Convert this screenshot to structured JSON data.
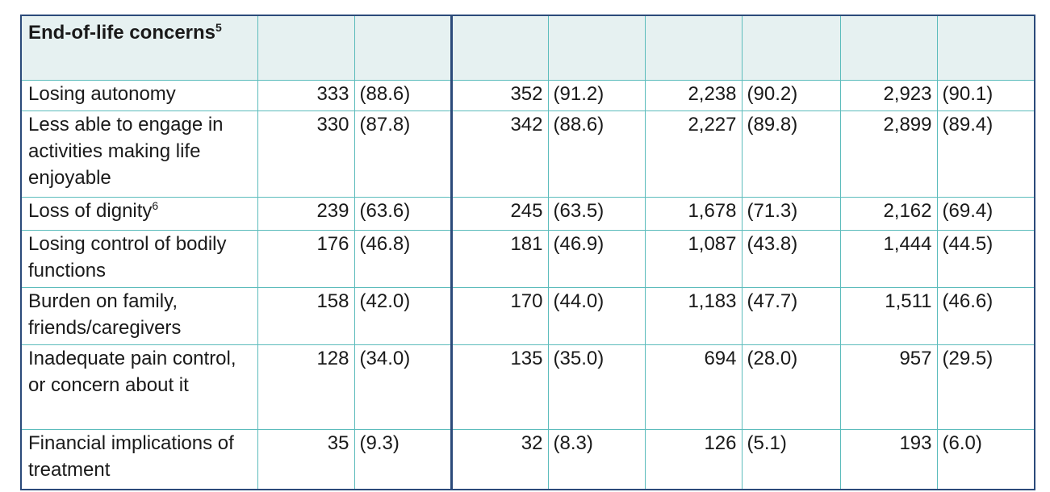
{
  "table": {
    "header": {
      "label": "End-of-life concerns",
      "note": "5"
    },
    "rows": [
      {
        "label": "Losing autonomy",
        "cells": [
          "333",
          "(88.6)",
          "352",
          "(91.2)",
          "2,238",
          "(90.2)",
          "2,923",
          "(90.1)"
        ]
      },
      {
        "label": "Less able to engage in activities making life enjoyable",
        "cells": [
          "330",
          "(87.8)",
          "342",
          "(88.6)",
          "2,227",
          "(89.8)",
          "2,899",
          "(89.4)"
        ]
      },
      {
        "label": "Loss of dignity",
        "note": "6",
        "cells": [
          "239",
          "(63.6)",
          "245",
          "(63.5)",
          "1,678",
          "(71.3)",
          "2,162",
          "(69.4)"
        ]
      },
      {
        "label": "Losing control of bodily functions",
        "cells": [
          "176",
          "(46.8)",
          "181",
          "(46.9)",
          "1,087",
          "(43.8)",
          "1,444",
          "(44.5)"
        ]
      },
      {
        "label": "Burden on family, friends/caregivers",
        "cells": [
          "158",
          "(42.0)",
          "170",
          "(44.0)",
          "1,183",
          "(47.7)",
          "1,511",
          "(46.6)"
        ]
      },
      {
        "label": "Inadequate pain control, or concern about it",
        "cells": [
          "128",
          "(34.0)",
          "135",
          "(35.0)",
          "694",
          "(28.0)",
          "957",
          "(29.5)"
        ]
      },
      {
        "label": "Financial implications of treatment",
        "cells": [
          "35",
          "(9.3)",
          "32",
          "(8.3)",
          "126",
          "(5.1)",
          "193",
          "(6.0)"
        ]
      }
    ]
  }
}
